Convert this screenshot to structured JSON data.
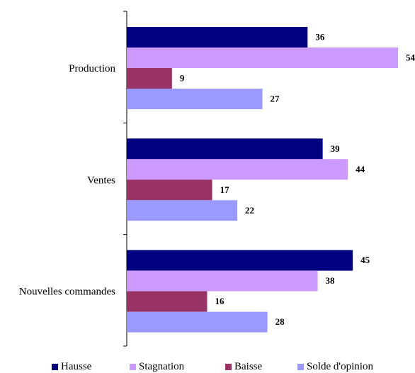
{
  "chart_data": {
    "type": "bar",
    "orientation": "horizontal",
    "categories": [
      "Production",
      "Ventes",
      "Nouvelles commandes"
    ],
    "series": [
      {
        "name": "Hausse",
        "values": [
          36,
          39,
          45
        ],
        "color": "#000080"
      },
      {
        "name": "Stagnation",
        "values": [
          54,
          44,
          38
        ],
        "color": "#cc99ff"
      },
      {
        "name": "Baisse",
        "values": [
          9,
          17,
          16
        ],
        "color": "#993366"
      },
      {
        "name": "Solde d'opinion",
        "values": [
          27,
          22,
          28
        ],
        "color": "#9999ff"
      }
    ],
    "xlim": [
      0,
      54
    ],
    "x_axis_visible": false,
    "grid": false,
    "data_labels": true,
    "legend_position": "bottom"
  }
}
